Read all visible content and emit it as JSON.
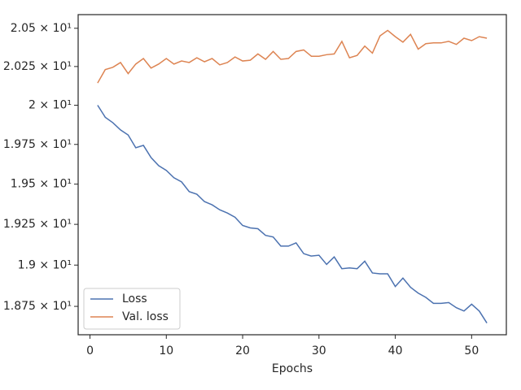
{
  "chart_data": {
    "type": "line",
    "xlabel": "Epochs",
    "log_y": true,
    "legend": "lower left",
    "x": [
      1,
      2,
      3,
      4,
      5,
      6,
      7,
      8,
      9,
      10,
      11,
      12,
      13,
      14,
      15,
      16,
      17,
      18,
      19,
      20,
      21,
      22,
      23,
      24,
      25,
      26,
      27,
      28,
      29,
      30,
      31,
      32,
      33,
      34,
      35,
      36,
      37,
      38,
      39,
      40,
      41,
      42,
      43,
      44,
      45,
      46,
      47,
      48,
      49,
      50,
      51,
      52
    ],
    "series": [
      {
        "name": "Loss",
        "color": "#4c72b0",
        "values": [
          20.0,
          19.923,
          19.888,
          19.842,
          19.81,
          19.729,
          19.744,
          19.667,
          19.616,
          19.586,
          19.54,
          19.514,
          19.453,
          19.437,
          19.391,
          19.371,
          19.34,
          19.32,
          19.294,
          19.243,
          19.228,
          19.223,
          19.182,
          19.172,
          19.116,
          19.116,
          19.136,
          19.07,
          19.055,
          19.06,
          19.004,
          19.05,
          18.978,
          18.983,
          18.978,
          19.024,
          18.952,
          18.947,
          18.947,
          18.87,
          18.921,
          18.865,
          18.83,
          18.804,
          18.768,
          18.768,
          18.773,
          18.742,
          18.722,
          18.763,
          18.722,
          18.65
        ]
      },
      {
        "name": "Val. loss",
        "color": "#dd8452",
        "values": [
          20.143,
          20.23,
          20.245,
          20.276,
          20.204,
          20.266,
          20.302,
          20.24,
          20.266,
          20.302,
          20.266,
          20.286,
          20.276,
          20.307,
          20.281,
          20.302,
          20.261,
          20.276,
          20.312,
          20.286,
          20.291,
          20.332,
          20.297,
          20.348,
          20.297,
          20.302,
          20.348,
          20.358,
          20.317,
          20.317,
          20.327,
          20.332,
          20.414,
          20.307,
          20.322,
          20.383,
          20.337,
          20.45,
          20.486,
          20.445,
          20.409,
          20.46,
          20.363,
          20.399,
          20.404,
          20.404,
          20.414,
          20.394,
          20.435,
          20.419,
          20.445,
          20.435
        ]
      }
    ],
    "xlim": [
      -1.55,
      54.55
    ],
    "xticks": [
      0,
      10,
      20,
      30,
      40,
      50
    ],
    "ylim": [
      18.58,
      20.59
    ],
    "yticks": [
      {
        "value": 18.75,
        "label": "1.875 × 10¹"
      },
      {
        "value": 19,
        "label": "1.9 × 10¹"
      },
      {
        "value": 19.25,
        "label": "1.925 × 10¹"
      },
      {
        "value": 19.5,
        "label": "1.95 × 10¹"
      },
      {
        "value": 19.75,
        "label": "1.975 × 10¹"
      },
      {
        "value": 20,
        "label": "2 × 10¹"
      },
      {
        "value": 20.25,
        "label": "2.025 × 10¹"
      },
      {
        "value": 20.5,
        "label": "2.05 × 10¹"
      }
    ]
  }
}
